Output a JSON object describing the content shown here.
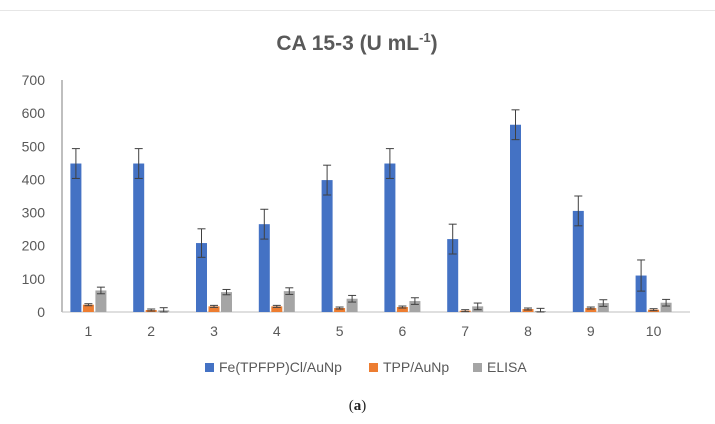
{
  "chart_data": {
    "type": "bar",
    "title": "CA 15-3 (U mL",
    "title_superscript": "-1",
    "title_suffix": ")",
    "categories": [
      "1",
      "2",
      "3",
      "4",
      "5",
      "6",
      "7",
      "8",
      "9",
      "10"
    ],
    "ylim": [
      0,
      700
    ],
    "yticks": [
      0,
      100,
      200,
      300,
      400,
      500,
      600,
      700
    ],
    "grid": false,
    "legend_position": "bottom",
    "series": [
      {
        "name": "Fe(TPFPP)Cl/AuNp",
        "color": "#4472C4",
        "values": [
          448,
          448,
          208,
          265,
          398,
          448,
          220,
          565,
          305,
          110
        ],
        "errors": [
          45,
          45,
          43,
          45,
          45,
          45,
          45,
          45,
          45,
          47
        ]
      },
      {
        "name": "TPP/AuNp",
        "color": "#ED7D31",
        "values": [
          22,
          6,
          17,
          17,
          12,
          15,
          4,
          9,
          12,
          7
        ],
        "errors": [
          3,
          3,
          3,
          3,
          3,
          3,
          3,
          3,
          3,
          3
        ]
      },
      {
        "name": "ELISA",
        "color": "#A5A5A5",
        "values": [
          65,
          5,
          60,
          63,
          40,
          33,
          17,
          3,
          27,
          28
        ],
        "errors": [
          10,
          8,
          8,
          10,
          10,
          10,
          10,
          8,
          10,
          10
        ]
      }
    ]
  },
  "caption": {
    "open": "(",
    "letter": "a",
    "close": ")"
  }
}
